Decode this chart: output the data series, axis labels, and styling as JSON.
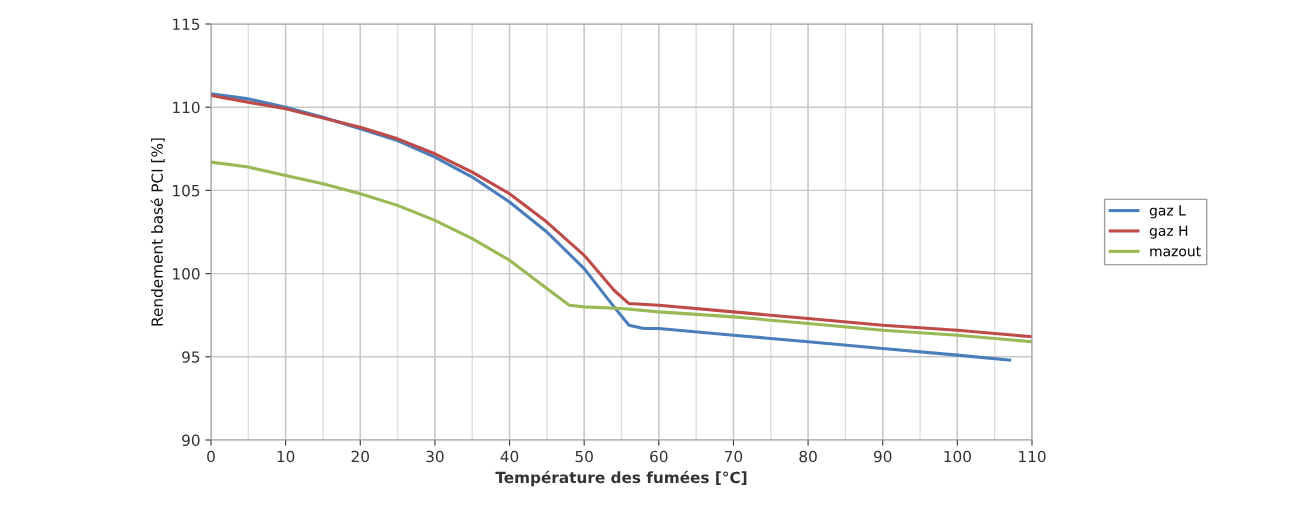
{
  "chart_data": {
    "type": "line",
    "xlabel": "Température des fumées [°C]",
    "ylabel": "Rendement basé PCI [%]",
    "xlim": [
      0,
      110
    ],
    "xticks": [
      0,
      10,
      20,
      30,
      40,
      50,
      60,
      70,
      80,
      90,
      100,
      110
    ],
    "ylim": [
      90,
      115
    ],
    "yticks": [
      90,
      95,
      100,
      105,
      110,
      115
    ],
    "grid": true,
    "legend": "right",
    "marker": "none",
    "line_style": "solid",
    "series": [
      {
        "name": "gaz L",
        "color": "#4a7ebb",
        "x": [
          0,
          5,
          10,
          15,
          20,
          25,
          30,
          35,
          40,
          45,
          50,
          54,
          56,
          58,
          60,
          70,
          80,
          90,
          100,
          107
        ],
        "values": [
          110.8,
          110.5,
          110.0,
          109.4,
          108.7,
          108.0,
          107.0,
          105.8,
          104.3,
          102.5,
          100.3,
          98.0,
          96.9,
          96.7,
          96.7,
          96.3,
          95.9,
          95.5,
          95.1,
          94.8
        ]
      },
      {
        "name": "gaz H",
        "color": "#be4b48",
        "x": [
          0,
          10,
          20,
          25,
          30,
          35,
          40,
          45,
          50,
          54,
          56,
          60,
          70,
          80,
          90,
          100,
          110
        ],
        "values": [
          110.7,
          109.9,
          108.8,
          108.1,
          107.2,
          106.1,
          104.8,
          103.1,
          101.1,
          99.0,
          98.2,
          98.1,
          97.7,
          97.3,
          96.9,
          96.6,
          96.2
        ]
      },
      {
        "name": "mazout",
        "color": "#98b954",
        "x": [
          0,
          5,
          10,
          15,
          20,
          25,
          30,
          35,
          40,
          45,
          48,
          50,
          55,
          60,
          70,
          80,
          90,
          100,
          110
        ],
        "values": [
          106.7,
          106.4,
          105.9,
          105.4,
          104.8,
          104.1,
          103.2,
          102.1,
          100.8,
          99.1,
          98.1,
          98.0,
          97.9,
          97.7,
          97.4,
          97.0,
          96.6,
          96.3,
          95.9
        ]
      }
    ]
  }
}
